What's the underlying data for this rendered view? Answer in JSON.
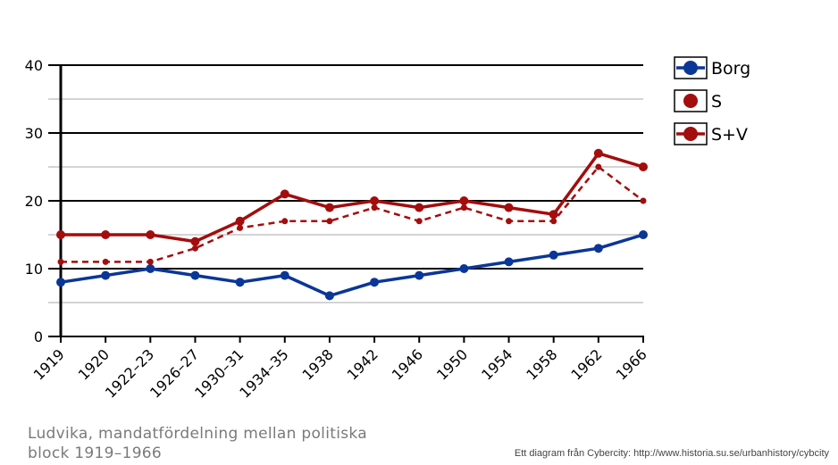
{
  "chart_data": {
    "type": "line",
    "categories": [
      "1919",
      "1920",
      "1922–23",
      "1926–27",
      "1930–31",
      "1934–35",
      "1938",
      "1942",
      "1946",
      "1950",
      "1954",
      "1958",
      "1962",
      "1966"
    ],
    "ylim": [
      0,
      40
    ],
    "yticks": [
      0,
      10,
      20,
      30,
      40
    ],
    "grid": "horizontal, every 5 units",
    "legend_position": "right",
    "series": [
      {
        "name": "Borg",
        "color": "#0a3697",
        "style": "solid",
        "values": [
          8,
          9,
          10,
          9,
          8,
          9,
          6,
          8,
          9,
          10,
          11,
          12,
          13,
          15
        ]
      },
      {
        "name": "S",
        "color": "#a30d0d",
        "style": "dashed",
        "values": [
          11,
          11,
          11,
          13,
          16,
          17,
          17,
          19,
          17,
          19,
          17,
          17,
          25,
          20
        ]
      },
      {
        "name": "S+V",
        "color": "#a30d0d",
        "style": "solid",
        "values": [
          15,
          15,
          15,
          14,
          17,
          21,
          19,
          20,
          19,
          20,
          19,
          18,
          27,
          25
        ]
      }
    ]
  },
  "caption": "Ludvika, mandatfördelning mellan politiska block 1919–1966",
  "credit": "Ett diagram från Cybercity: http://www.historia.su.se/urbanhistory/cybcity"
}
